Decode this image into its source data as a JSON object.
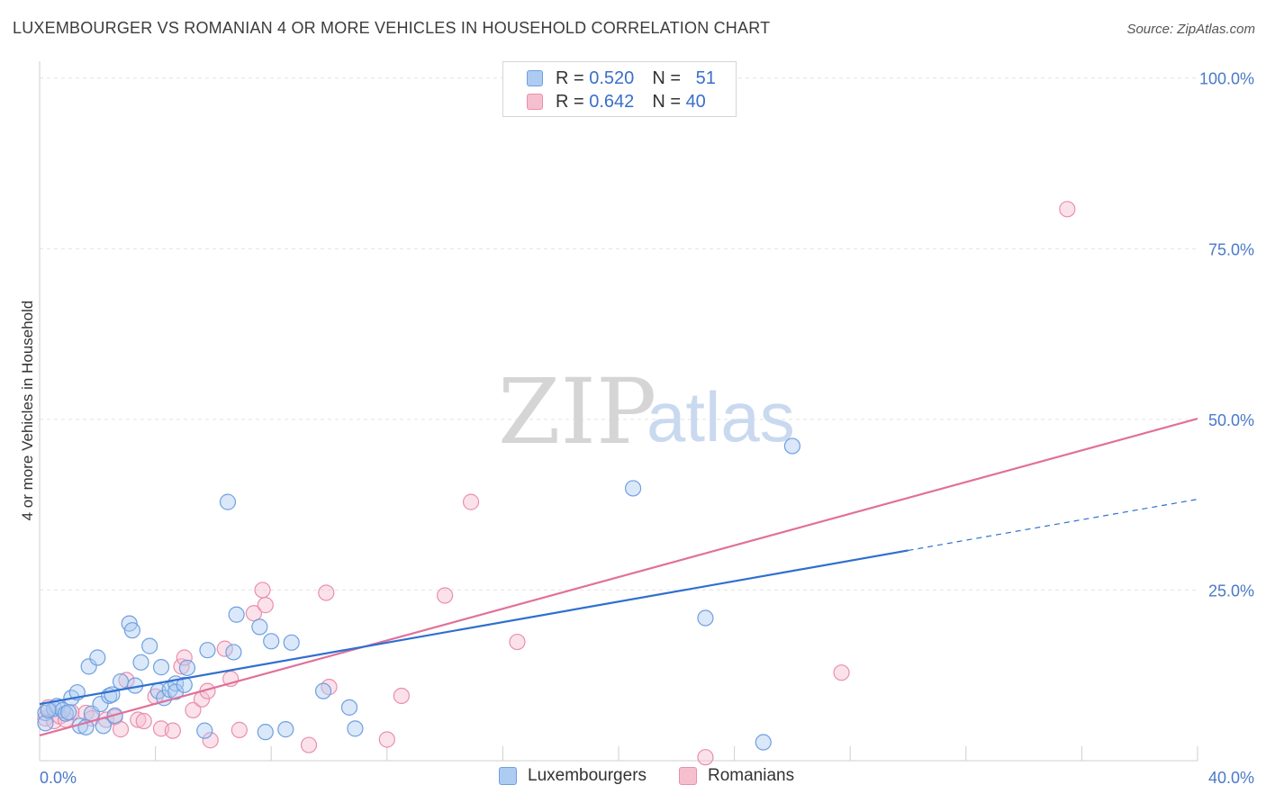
{
  "header": {
    "title": "LUXEMBOURGER VS ROMANIAN 4 OR MORE VEHICLES IN HOUSEHOLD CORRELATION CHART",
    "source": "Source: ZipAtlas.com"
  },
  "watermark": {
    "zip": "ZIP",
    "atlas": "atlas"
  },
  "legend": {
    "series": [
      {
        "r_label": "R =",
        "r_value": "0.520",
        "n_label": "N =",
        "n_value": "51"
      },
      {
        "r_label": "R =",
        "r_value": "0.642",
        "n_label": "N =",
        "n_value": "40"
      }
    ]
  },
  "bottom_legend": {
    "lux": "Luxembourgers",
    "rom": "Romanians"
  },
  "colors": {
    "lux_fill": "#aecbf2",
    "lux_stroke": "#6f9fe0",
    "lux_line": "#2f6fd0",
    "rom_fill": "#f6bfd0",
    "rom_stroke": "#e98fad",
    "rom_line": "#e0709a",
    "grid": "#e2e2e2",
    "axis_text": "#4a79c8"
  },
  "chart_data": {
    "type": "scatter",
    "title": "LUXEMBOURGER VS ROMANIAN 4 OR MORE VEHICLES IN HOUSEHOLD CORRELATION CHART",
    "xlabel": "",
    "ylabel": "4 or more Vehicles in Household",
    "xlim": [
      0,
      40
    ],
    "ylim": [
      0,
      103
    ],
    "x_tick_labels": [
      {
        "value": 0,
        "label": "0.0%"
      },
      {
        "value": 40,
        "label": "40.0%"
      }
    ],
    "y_tick_labels": [
      {
        "value": 25,
        "label": "25.0%"
      },
      {
        "value": 50,
        "label": "50.0%"
      },
      {
        "value": 75,
        "label": "75.0%"
      },
      {
        "value": 100,
        "label": "100.0%"
      }
    ],
    "x_minor_ticks": [
      0,
      4,
      8,
      12,
      16,
      20,
      24,
      28,
      32,
      36,
      40
    ],
    "y_gridlines": [
      25,
      50,
      75,
      100
    ],
    "series": [
      {
        "name": "Luxembourgers",
        "R": 0.52,
        "N": 51,
        "points": [
          [
            0.2,
            7.0
          ],
          [
            0.2,
            5.5
          ],
          [
            0.5,
            7.6
          ],
          [
            0.6,
            8.0
          ],
          [
            0.8,
            7.4
          ],
          [
            0.9,
            6.9
          ],
          [
            1.1,
            9.2
          ],
          [
            1.3,
            10.0
          ],
          [
            1.4,
            5.1
          ],
          [
            1.6,
            4.9
          ],
          [
            1.7,
            13.8
          ],
          [
            1.8,
            6.9
          ],
          [
            2.0,
            15.1
          ],
          [
            2.1,
            8.3
          ],
          [
            2.2,
            5.1
          ],
          [
            2.4,
            9.5
          ],
          [
            2.5,
            9.7
          ],
          [
            2.6,
            6.6
          ],
          [
            2.8,
            11.6
          ],
          [
            3.1,
            20.1
          ],
          [
            3.2,
            19.1
          ],
          [
            3.3,
            11.0
          ],
          [
            3.5,
            14.4
          ],
          [
            3.8,
            16.8
          ],
          [
            4.1,
            10.2
          ],
          [
            4.2,
            13.7
          ],
          [
            4.3,
            9.2
          ],
          [
            4.5,
            10.4
          ],
          [
            4.7,
            11.3
          ],
          [
            4.7,
            10.1
          ],
          [
            5.0,
            11.1
          ],
          [
            5.1,
            13.6
          ],
          [
            5.7,
            4.4
          ],
          [
            5.8,
            16.2
          ],
          [
            6.5,
            37.9
          ],
          [
            6.7,
            15.9
          ],
          [
            6.8,
            21.4
          ],
          [
            7.6,
            19.6
          ],
          [
            7.8,
            4.2
          ],
          [
            8.0,
            17.5
          ],
          [
            8.5,
            4.6
          ],
          [
            8.7,
            17.3
          ],
          [
            9.8,
            10.2
          ],
          [
            10.7,
            7.8
          ],
          [
            10.9,
            4.7
          ],
          [
            20.5,
            39.9
          ],
          [
            23.0,
            20.9
          ],
          [
            25.0,
            2.7
          ],
          [
            26.0,
            46.1
          ],
          [
            0.3,
            7.4
          ],
          [
            1.0,
            7.1
          ]
        ],
        "trend": {
          "x0": 0,
          "y0": 8.3,
          "x1": 30.0,
          "y1": 30.8,
          "dashed_to_x": 40,
          "dashed_to_y": 38.3
        }
      },
      {
        "name": "Romanians",
        "R": 0.642,
        "N": 40,
        "points": [
          [
            0.2,
            6.2
          ],
          [
            0.3,
            7.8
          ],
          [
            0.5,
            5.8
          ],
          [
            0.7,
            6.5
          ],
          [
            0.9,
            6.0
          ],
          [
            1.1,
            7.1
          ],
          [
            1.6,
            7.0
          ],
          [
            1.8,
            6.2
          ],
          [
            2.3,
            6.0
          ],
          [
            2.6,
            6.4
          ],
          [
            2.8,
            4.6
          ],
          [
            3.0,
            11.8
          ],
          [
            3.4,
            6.0
          ],
          [
            3.6,
            5.8
          ],
          [
            4.0,
            9.4
          ],
          [
            4.2,
            4.7
          ],
          [
            4.6,
            4.4
          ],
          [
            4.9,
            13.8
          ],
          [
            5.0,
            15.1
          ],
          [
            5.3,
            7.4
          ],
          [
            5.6,
            9.0
          ],
          [
            5.8,
            10.2
          ],
          [
            5.9,
            3.0
          ],
          [
            6.4,
            16.4
          ],
          [
            6.6,
            12.0
          ],
          [
            6.9,
            4.5
          ],
          [
            7.4,
            21.6
          ],
          [
            7.8,
            22.8
          ],
          [
            7.7,
            25.0
          ],
          [
            9.3,
            2.3
          ],
          [
            9.9,
            24.6
          ],
          [
            10.0,
            10.8
          ],
          [
            12.0,
            3.1
          ],
          [
            12.5,
            9.5
          ],
          [
            14.0,
            24.2
          ],
          [
            14.9,
            37.9
          ],
          [
            16.5,
            17.4
          ],
          [
            23.0,
            0.5
          ],
          [
            27.7,
            12.9
          ],
          [
            35.5,
            80.8
          ]
        ],
        "trend": {
          "x0": 0,
          "y0": 3.7,
          "x1": 40,
          "y1": 50.1
        }
      }
    ]
  }
}
